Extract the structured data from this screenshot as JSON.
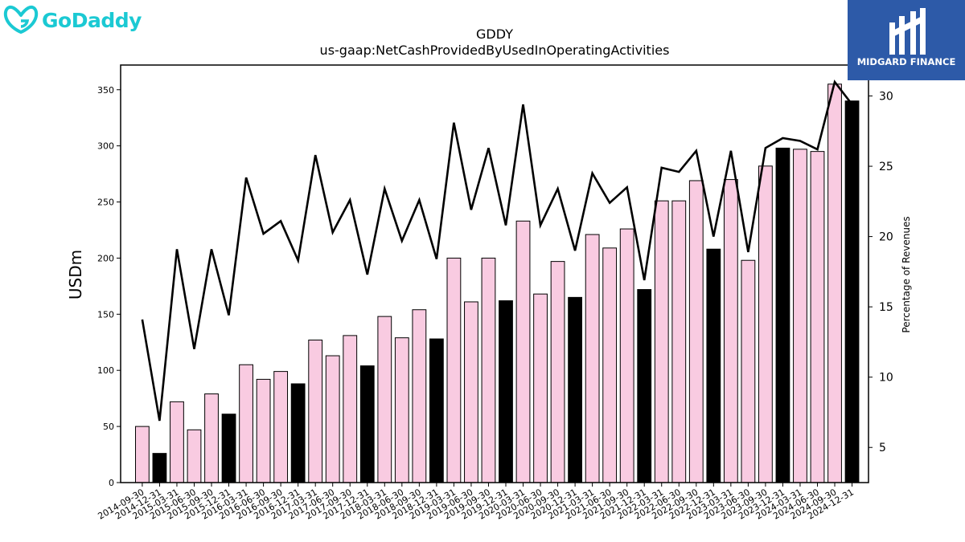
{
  "logos": {
    "left_brand": "GoDaddy",
    "right_brand": "MIDGARD FINANCE"
  },
  "chart_data": {
    "type": "bar",
    "title": "GDDY",
    "subtitle": "us-gaap:NetCashProvidedByUsedInOperatingActivities",
    "ylabel": "USDm",
    "y2label": "Percentage of Revenues",
    "ylim": [
      0,
      372
    ],
    "y2lim": [
      2.5,
      32.2
    ],
    "yticks": [
      0,
      50,
      100,
      150,
      200,
      250,
      300,
      350
    ],
    "y2ticks": [
      5,
      10,
      15,
      20,
      25,
      30
    ],
    "colors": {
      "quarter_bar": "#f9cbe1",
      "year_end_bar": "#000000",
      "line": "#000000"
    },
    "categories": [
      "2014-09-30",
      "2014-12-31",
      "2015-03-31",
      "2015-06-30",
      "2015-09-30",
      "2015-12-31",
      "2016-03-31",
      "2016-06-30",
      "2016-09-30",
      "2016-12-31",
      "2017-03-31",
      "2017-06-30",
      "2017-09-30",
      "2017-12-31",
      "2018-03-31",
      "2018-06-30",
      "2018-09-30",
      "2018-12-31",
      "2019-03-31",
      "2019-06-30",
      "2019-09-30",
      "2019-12-31",
      "2020-03-31",
      "2020-06-30",
      "2020-09-30",
      "2020-12-31",
      "2021-03-31",
      "2021-06-30",
      "2021-09-30",
      "2021-12-31",
      "2022-03-31",
      "2022-06-30",
      "2022-09-30",
      "2022-12-31",
      "2023-03-31",
      "2023-06-30",
      "2023-09-30",
      "2023-12-31",
      "2024-03-31",
      "2024-06-30",
      "2024-09-30",
      "2024-12-31"
    ],
    "series": [
      {
        "name": "",
        "axis": "left",
        "kind": "bar",
        "values": [
          50,
          26,
          72,
          47,
          79,
          61,
          105,
          92,
          99,
          88,
          127,
          113,
          131,
          104,
          148,
          129,
          154,
          128,
          200,
          161,
          200,
          162,
          233,
          168,
          197,
          165,
          221,
          209,
          226,
          172,
          251,
          251,
          269,
          208,
          270,
          198,
          282,
          298,
          297,
          295,
          355,
          340
        ]
      },
      {
        "name": "",
        "axis": "right",
        "kind": "line",
        "values": [
          14.1,
          6.9,
          19.1,
          12.0,
          19.1,
          14.4,
          24.2,
          20.2,
          21.1,
          18.3,
          25.8,
          20.3,
          22.6,
          17.3,
          23.4,
          19.7,
          22.6,
          18.4,
          28.1,
          21.9,
          26.3,
          20.8,
          29.4,
          20.8,
          23.4,
          19.0,
          24.5,
          22.4,
          23.5,
          16.9,
          24.9,
          24.6,
          26.1,
          20.0,
          26.1,
          18.9,
          26.3,
          27.0,
          26.8,
          26.2,
          31.0,
          29.4
        ]
      }
    ],
    "year_end_marker": "-12-31",
    "grid": false
  }
}
